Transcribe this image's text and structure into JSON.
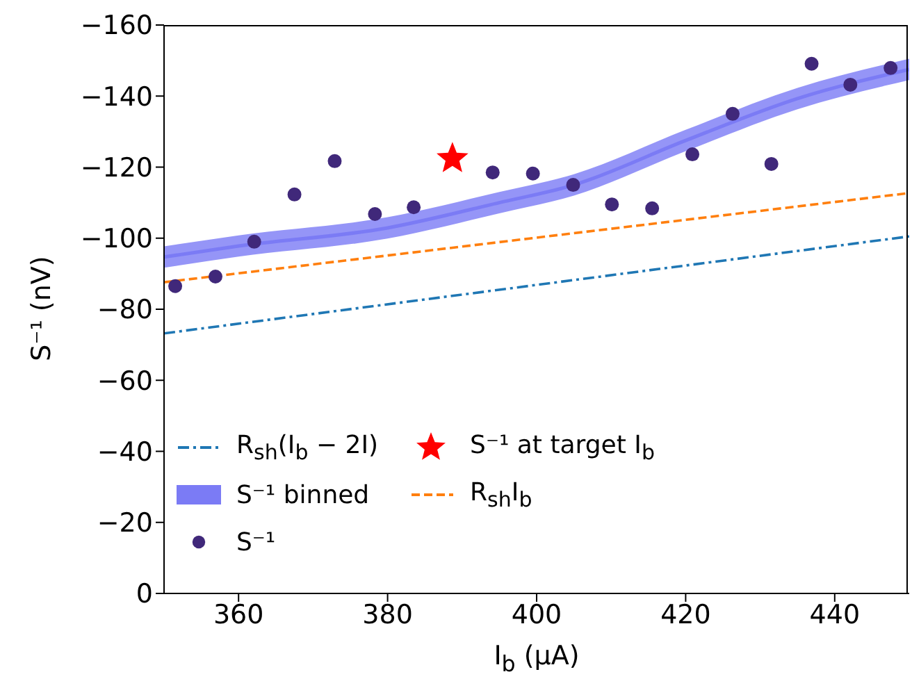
{
  "chart_data": {
    "type": "line",
    "xlabel": "I$_{b}$  (μA)",
    "ylabel": "S⁻¹  (nV)",
    "xlim": [
      350,
      450
    ],
    "xticks": [
      360,
      380,
      400,
      420,
      440
    ],
    "ylim": [
      0,
      -160
    ],
    "yticks": [
      0,
      -20,
      -40,
      -60,
      -80,
      -100,
      -120,
      -140,
      -160
    ],
    "grid": false,
    "legend": "bottom left",
    "series": [
      {
        "name": "R$_{sh}$(I$_{b}$ − 2I)",
        "type": "line",
        "color": "#1f77b4",
        "line_style": "dashdot",
        "marker": "none",
        "x": [
          350,
          450
        ],
        "values": [
          -73.2,
          -100.5
        ]
      },
      {
        "name": "S⁻¹ binned",
        "type": "line",
        "color": "#7b7bf5",
        "line_style": "solid",
        "marker": "none",
        "x": [
          350,
          360,
          380,
          395,
          405,
          420,
          435,
          450
        ],
        "values": [
          -94.7,
          -97.8,
          -102.9,
          -110,
          -115,
          -127.5,
          -139.3,
          -147.5
        ],
        "lower": [
          -91.7,
          -94.8,
          -99.9,
          -107,
          -112,
          -124.5,
          -136.3,
          -144.5
        ],
        "upper": [
          -97.7,
          -100.8,
          -105.9,
          -113,
          -118,
          -130.5,
          -142.3,
          -150.5
        ]
      },
      {
        "name": "S⁻¹",
        "type": "scatter",
        "color": "#40287a",
        "marker": "circle",
        "x": [
          351.5,
          356.9,
          362.1,
          367.5,
          372.9,
          378.3,
          383.5,
          394.1,
          399.5,
          404.9,
          410.1,
          415.5,
          420.9,
          426.3,
          431.5,
          436.9,
          442.1,
          447.5
        ],
        "values": [
          -86.5,
          -89.2,
          -99,
          -112.3,
          -121.7,
          -106.8,
          -108.7,
          -118.5,
          -118.2,
          -115,
          -109.5,
          -108.4,
          -123.6,
          -135,
          -120.9,
          -149.1,
          -143.2,
          -147.9
        ]
      },
      {
        "name": "S⁻¹ at target I$_{b}$",
        "type": "scatter",
        "color": "#ff0000",
        "marker": "star",
        "x": [
          388.7
        ],
        "values": [
          -122.4
        ]
      },
      {
        "name": "R$_{sh}$I$_{b}$",
        "type": "line",
        "color": "#ff7f0e",
        "line_style": "dashed",
        "marker": "none",
        "x": [
          350,
          450
        ],
        "values": [
          -87.6,
          -112.7
        ]
      }
    ]
  }
}
